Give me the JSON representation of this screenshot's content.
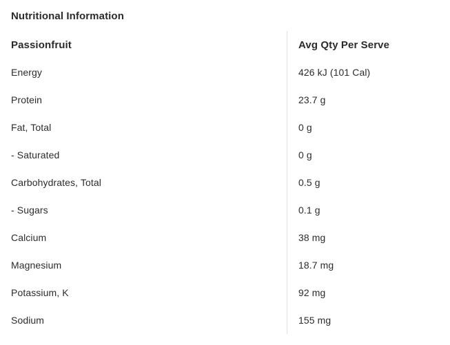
{
  "page": {
    "title": "Nutritional Information"
  },
  "table": {
    "columns": [
      {
        "label": "Passionfruit"
      },
      {
        "label": "Avg Qty Per Serve"
      }
    ],
    "rows": [
      {
        "nutrient": "Energy",
        "value": "426 kJ (101 Cal)"
      },
      {
        "nutrient": "Protein",
        "value": "23.7 g"
      },
      {
        "nutrient": "Fat, Total",
        "value": "0 g"
      },
      {
        "nutrient": "- Saturated",
        "value": "0 g"
      },
      {
        "nutrient": "Carbohydrates, Total",
        "value": "0.5 g"
      },
      {
        "nutrient": "- Sugars",
        "value": "0.1 g"
      },
      {
        "nutrient": "Calcium",
        "value": "38 mg"
      },
      {
        "nutrient": "Magnesium",
        "value": "18.7 mg"
      },
      {
        "nutrient": "Potassium, K",
        "value": "92 mg"
      },
      {
        "nutrient": "Sodium",
        "value": "155 mg"
      }
    ]
  },
  "colors": {
    "text": "#2b2b2b",
    "divider": "#e0e0e0",
    "background": "#ffffff"
  }
}
